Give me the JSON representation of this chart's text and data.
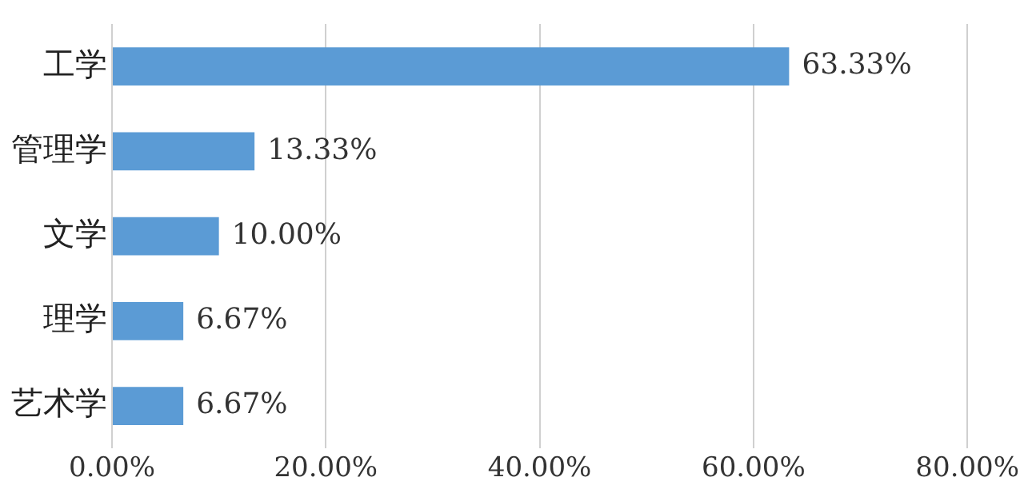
{
  "chart_data": {
    "type": "bar",
    "orientation": "horizontal",
    "categories": [
      "工学",
      "管理学",
      "文学",
      "理学",
      "艺术学"
    ],
    "values": [
      63.33,
      13.33,
      10.0,
      6.67,
      6.67
    ],
    "value_labels": [
      "63.33%",
      "13.33%",
      "10.00%",
      "6.67%",
      "6.67%"
    ],
    "color": "#5b9bd5",
    "xlim": [
      0,
      80
    ],
    "xticks": [
      {
        "value": 0,
        "label": "0.00%"
      },
      {
        "value": 20,
        "label": "20.00%"
      },
      {
        "value": 40,
        "label": "40.00%"
      },
      {
        "value": 60,
        "label": "60.00%"
      },
      {
        "value": 80,
        "label": "80.00%"
      }
    ],
    "grid": "x"
  }
}
